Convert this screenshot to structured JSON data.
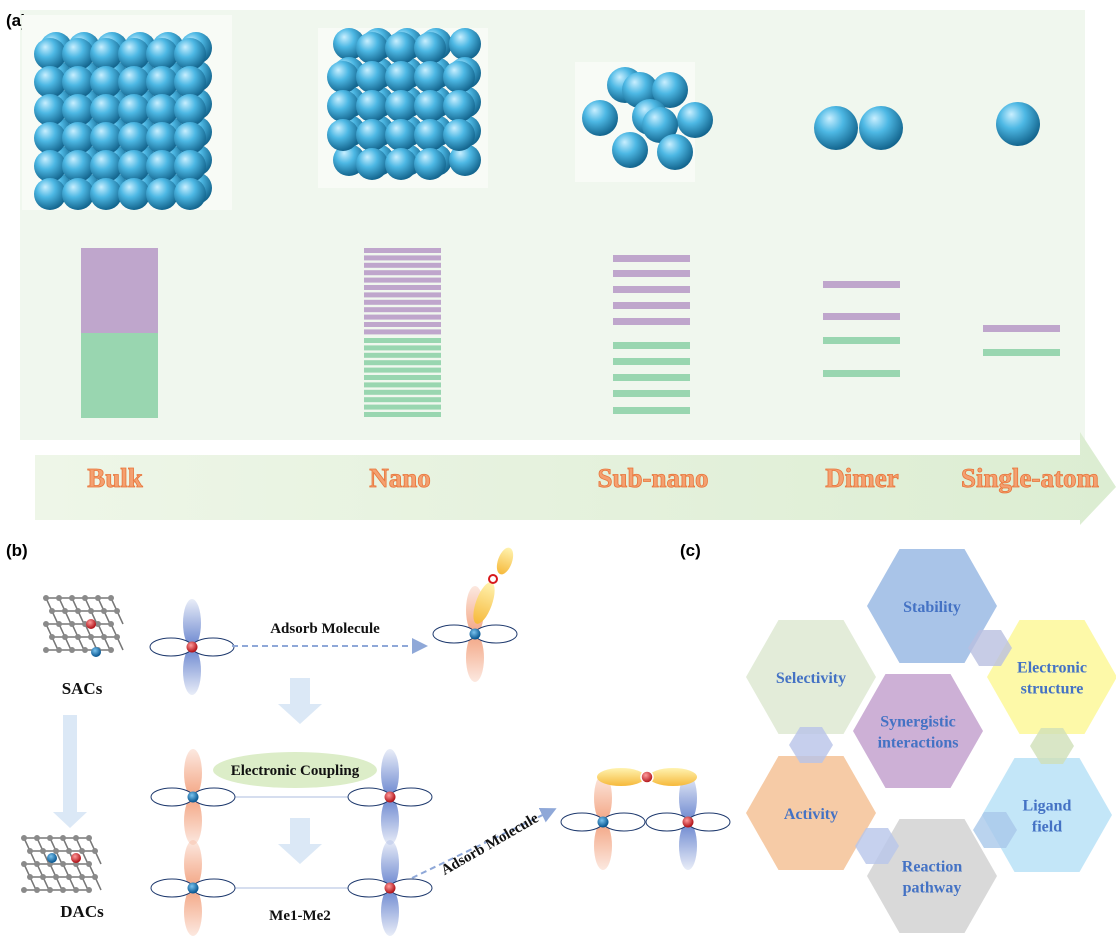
{
  "panel_labels": [
    "(a)",
    "(b)",
    "(c)"
  ],
  "stages": [
    "Bulk",
    "Nano",
    "Sub-nano",
    "Dimer",
    "Single-atom"
  ],
  "panel_b": {
    "sacs": "SACs",
    "dacs": "DACs",
    "adsorb_top": "Adsorb Molecule",
    "coupling": "Electronic Coupling",
    "bond": "Me1-Me2",
    "adsorb_bottom": "Adsorb Molecule"
  },
  "panel_c": {
    "hexagons": [
      {
        "lines": [
          "Stability"
        ]
      },
      {
        "lines": [
          "Selectivity"
        ]
      },
      {
        "lines": [
          "Electronic",
          "structure"
        ]
      },
      {
        "lines": [
          "Synergistic",
          "interactions"
        ]
      },
      {
        "lines": [
          "Activity"
        ]
      },
      {
        "lines": [
          "Ligand",
          "field"
        ]
      },
      {
        "lines": [
          "Reaction",
          "pathway"
        ]
      }
    ]
  }
}
